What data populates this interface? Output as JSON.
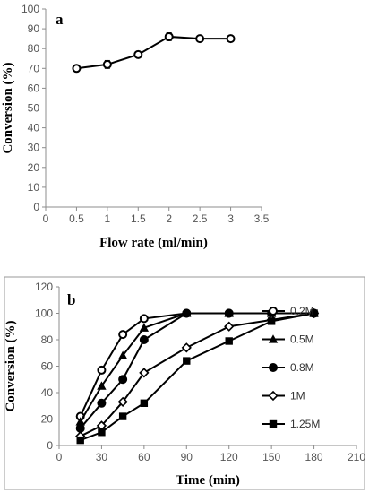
{
  "chart_data": [
    {
      "type": "line",
      "panel_label": "a",
      "xlabel": "Flow rate (ml/min)",
      "ylabel": "Conversion (%)",
      "xlim": [
        0,
        3.5
      ],
      "ylim": [
        0,
        100
      ],
      "xticks": [
        0,
        0.5,
        1,
        1.5,
        2,
        2.5,
        3,
        3.5
      ],
      "yticks": [
        0,
        10,
        20,
        30,
        40,
        50,
        60,
        70,
        80,
        90,
        100
      ],
      "grid": false,
      "series": [
        {
          "marker": "open-circle",
          "error_bars": true,
          "x": [
            0.5,
            1,
            1.5,
            2,
            2.5,
            3
          ],
          "y": [
            70,
            72,
            77,
            86,
            85,
            85
          ],
          "err": [
            1,
            2,
            1,
            2,
            1.5,
            1
          ]
        }
      ]
    },
    {
      "type": "line",
      "panel_label": "b",
      "xlabel": "Time (min)",
      "ylabel": "Conversion (%)",
      "xlim": [
        0,
        210
      ],
      "ylim": [
        0,
        120
      ],
      "xticks": [
        0,
        30,
        60,
        90,
        120,
        150,
        180,
        210
      ],
      "yticks": [
        0,
        20,
        40,
        60,
        80,
        100,
        120
      ],
      "grid": false,
      "legend_position": "right",
      "series": [
        {
          "name": "0.2M",
          "marker": "open-circle",
          "x": [
            15,
            30,
            45,
            60,
            90,
            120,
            150,
            180
          ],
          "y": [
            22,
            57,
            84,
            96,
            100,
            100,
            100,
            100
          ]
        },
        {
          "name": "0.5M",
          "marker": "filled-triangle",
          "x": [
            15,
            30,
            45,
            60,
            90,
            120,
            150,
            180
          ],
          "y": [
            18,
            45,
            68,
            89,
            100,
            100,
            100,
            100
          ]
        },
        {
          "name": "0.8M",
          "marker": "filled-circle",
          "x": [
            15,
            30,
            45,
            60,
            90,
            120,
            150,
            180
          ],
          "y": [
            13,
            32,
            50,
            80,
            100,
            100,
            100,
            100
          ]
        },
        {
          "name": "1M",
          "marker": "open-diamond",
          "x": [
            15,
            30,
            45,
            60,
            90,
            120,
            150,
            180
          ],
          "y": [
            7,
            15,
            33,
            55,
            74,
            90,
            95,
            100
          ]
        },
        {
          "name": "1.25M",
          "marker": "filled-square",
          "x": [
            15,
            30,
            45,
            60,
            90,
            120,
            150,
            180
          ],
          "y": [
            4,
            10,
            22,
            32,
            64,
            79,
            94,
            100
          ]
        }
      ]
    }
  ]
}
